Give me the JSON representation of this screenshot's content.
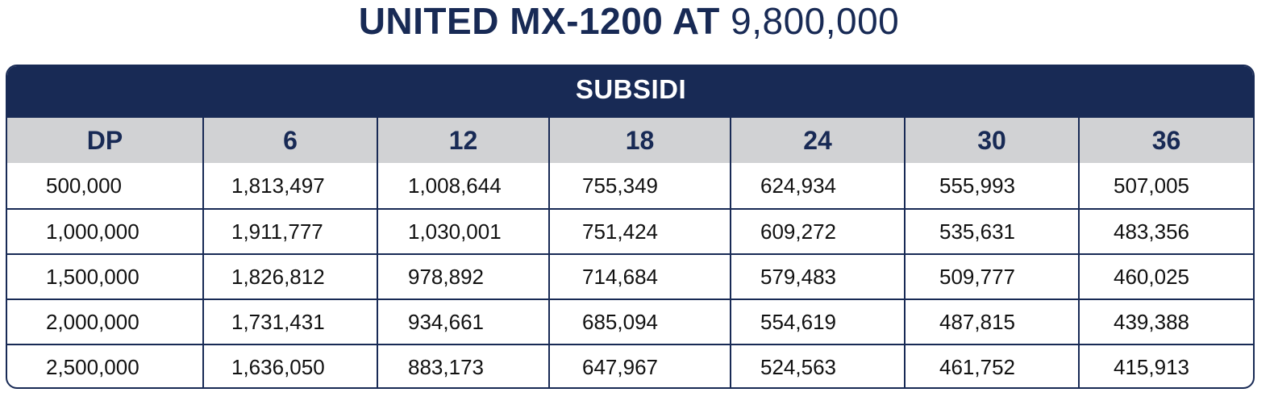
{
  "title": {
    "product": "UNITED MX-1200 AT",
    "price": "9,800,000"
  },
  "table": {
    "banner": "SUBSIDI",
    "columns": [
      "DP",
      "6",
      "12",
      "18",
      "24",
      "30",
      "36"
    ],
    "rows": [
      [
        "500,000",
        "1,813,497",
        "1,008,644",
        "755,349",
        "624,934",
        "555,993",
        "507,005"
      ],
      [
        "1,000,000",
        "1,911,777",
        "1,030,001",
        "751,424",
        "609,272",
        "535,631",
        "483,356"
      ],
      [
        "1,500,000",
        "1,826,812",
        "978,892",
        "714,684",
        "579,483",
        "509,777",
        "460,025"
      ],
      [
        "2,000,000",
        "1,731,431",
        "934,661",
        "685,094",
        "554,619",
        "487,815",
        "439,388"
      ],
      [
        "2,500,000",
        "1,636,050",
        "883,173",
        "647,967",
        "524,563",
        "461,752",
        "415,913"
      ]
    ]
  },
  "colors": {
    "navy": "#182a55",
    "header_gray": "#d1d2d4",
    "text": "#111111",
    "background": "#ffffff"
  }
}
